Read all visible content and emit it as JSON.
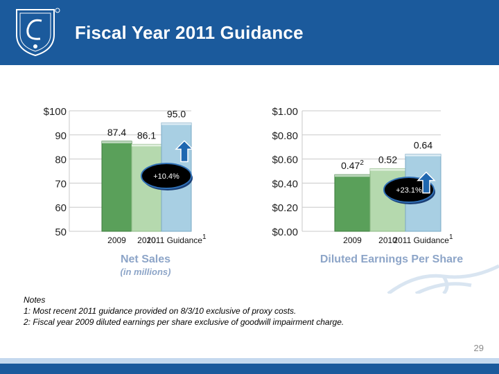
{
  "header": {
    "title": "Fiscal Year 2011 Guidance"
  },
  "charts": {
    "left_title": "Net Sales",
    "left_subtitle": "(in millions)",
    "right_title": "Diluted Earnings Per Share"
  },
  "notes": {
    "heading": "Notes",
    "note1": "1: Most recent 2011 guidance provided on 8/3/10 exclusive of proxy costs.",
    "note2": "2: Fiscal year 2009 diluted earnings per share exclusive of goodwill impairment charge."
  },
  "page_number": "29",
  "colors": {
    "header": "#1b5a9c",
    "bar_2009": "#5aa05a",
    "bar_2010": "#b5d9ae",
    "bar_2011": "#a8cfe3",
    "arrow": "#1f67b0",
    "subtitle": "#8da5c8"
  },
  "chart_data": [
    {
      "type": "bar",
      "title": "Net Sales",
      "subtitle": "(in millions)",
      "categories": [
        "2009",
        "2010",
        "2011 Guidance"
      ],
      "category_superscripts": [
        "",
        "",
        "1"
      ],
      "values": [
        87.4,
        86.1,
        95.0
      ],
      "value_labels": [
        "87.4",
        "86.1",
        "95.0"
      ],
      "value_superscripts": [
        "",
        "",
        ""
      ],
      "ylim": [
        50,
        100
      ],
      "yticks": [
        50,
        60,
        70,
        80,
        90,
        100
      ],
      "ytick_labels": [
        "50",
        "60",
        "70",
        "80",
        "90",
        "$100"
      ],
      "annotation": "+10.4%"
    },
    {
      "type": "bar",
      "title": "Diluted Earnings Per Share",
      "categories": [
        "2009",
        "2010",
        "2011 Guidance"
      ],
      "category_superscripts": [
        "",
        "",
        "1"
      ],
      "values": [
        0.47,
        0.52,
        0.64
      ],
      "value_labels": [
        "0.47",
        "0.52",
        "0.64"
      ],
      "value_superscripts": [
        "2",
        "",
        ""
      ],
      "ylim": [
        0,
        1.0
      ],
      "yticks": [
        0,
        0.2,
        0.4,
        0.6,
        0.8,
        1.0
      ],
      "ytick_labels": [
        "$0.00",
        "$0.20",
        "$0.40",
        "$0.60",
        "$0.80",
        "$1.00"
      ],
      "annotation": "+23.1%"
    }
  ]
}
